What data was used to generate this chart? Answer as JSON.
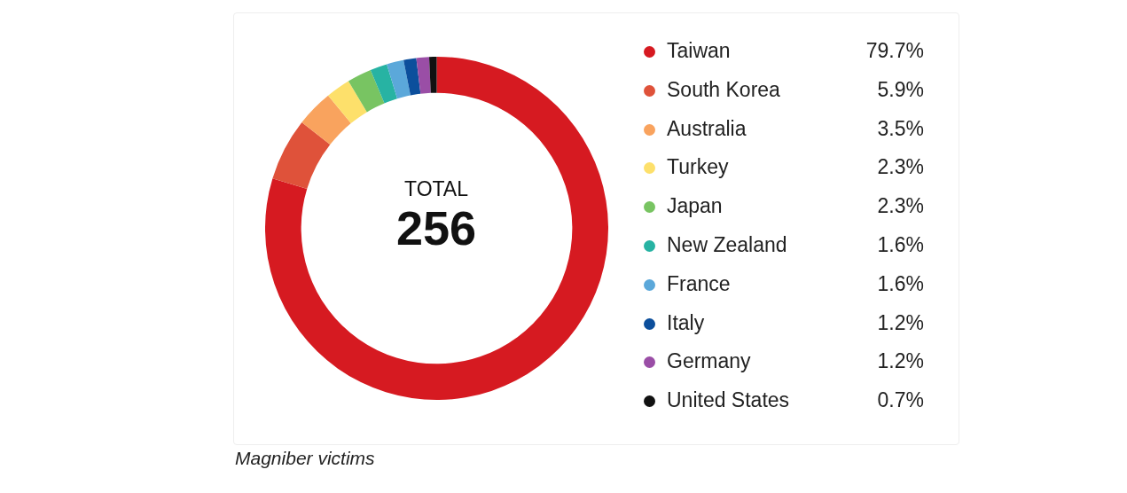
{
  "chart_data": {
    "type": "donut",
    "categories": [
      "Taiwan",
      "South Korea",
      "Australia",
      "Turkey",
      "Japan",
      "New Zealand",
      "France",
      "Italy",
      "Germany",
      "United States"
    ],
    "values": [
      79.7,
      5.9,
      3.5,
      2.3,
      2.3,
      1.6,
      1.6,
      1.2,
      1.2,
      0.7
    ],
    "colors": [
      "#d61a21",
      "#df523a",
      "#f9a35e",
      "#fde06b",
      "#78c462",
      "#27b3a3",
      "#5ba8da",
      "#0c4f9c",
      "#9a4ea6",
      "#111111"
    ],
    "value_labels": [
      "79.7%",
      "5.9%",
      "3.5%",
      "2.3%",
      "2.3%",
      "1.6%",
      "1.6%",
      "1.2%",
      "1.2%",
      "0.7%"
    ],
    "legend": "right",
    "annotations": [
      "TOTAL",
      "256",
      "Magniber victims"
    ]
  }
}
